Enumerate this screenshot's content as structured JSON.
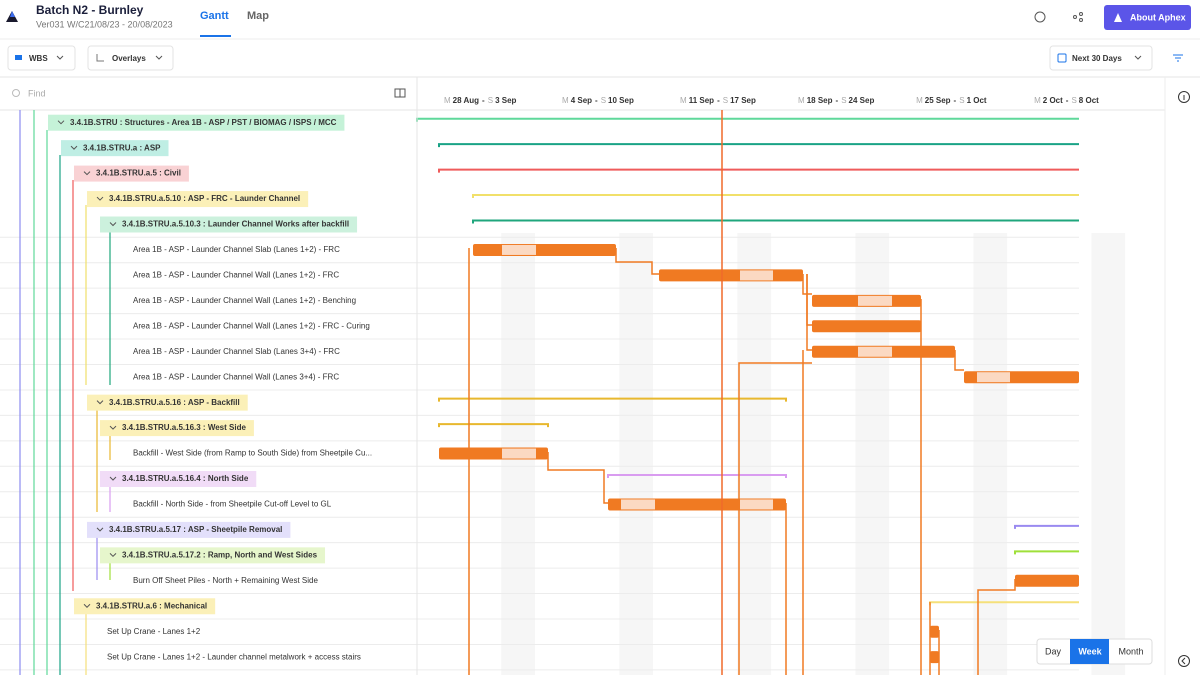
{
  "header": {
    "title": "Batch N2 - Burnley",
    "subtitle": "Ver031 W/C21/08/23 - 20/08/2023",
    "tabs": [
      "Gantt",
      "Map"
    ],
    "about": "About Aphex"
  },
  "toolbar": {
    "wbs": "WBS",
    "overlays": "Overlays",
    "range": "Next 30 Days"
  },
  "tree": {
    "search": "Find",
    "rows": [
      "3.4.1B.STRU : Structures - Area 1B - ASP / PST / BIOMAG / ISPS / MCC",
      "3.4.1B.STRU.a : ASP",
      "3.4.1B.STRU.a.5 : Civil",
      "3.4.1B.STRU.a.5.10 : ASP - FRC - Launder Channel",
      "3.4.1B.STRU.a.5.10.3 : Launder Channel Works after backfill",
      "Area 1B - ASP - Launder Channel Slab (Lanes 1+2) - FRC",
      "Area 1B - ASP - Launder Channel Wall (Lanes 1+2) - FRC",
      "Area 1B - ASP - Launder Channel Wall (Lanes 1+2) - Benching",
      "Area 1B - ASP - Launder Channel Wall (Lanes 1+2) - FRC - Curing",
      "Area 1B - ASP - Launder Channel Slab (Lanes 3+4) - FRC",
      "Area 1B - ASP - Launder Channel Wall (Lanes 3+4) - FRC",
      "3.4.1B.STRU.a.5.16 : ASP - Backfill",
      "3.4.1B.STRU.a.5.16.3 : West Side",
      "Backfill - West Side (from Ramp to South Side) from Sheetpile Cu...",
      "3.4.1B.STRU.a.5.16.4 : North Side",
      "Backfill - North Side - from Sheetpile Cut-off Level to GL",
      "3.4.1B.STRU.a.5.17 : ASP - Sheetpile Removal",
      "3.4.1B.STRU.a.5.17.2 : Ramp, North and West Sides",
      "Burn Off Sheet Piles - North + Remaining West Side",
      "3.4.1B.STRU.a.6 : Mechanical",
      "Set Up Crane - Lanes 1+2",
      "Set Up Crane - Lanes 1+2 - Launder channel metalwork + access stairs"
    ]
  },
  "timeline": {
    "weeks": [
      {
        "mon": "M",
        "from": "28 Aug",
        "dash": "-",
        "sun": "S",
        "to": "3 Sep"
      },
      {
        "mon": "M",
        "from": "4 Sep",
        "dash": "-",
        "sun": "S",
        "to": "10 Sep"
      },
      {
        "mon": "M",
        "from": "11 Sep",
        "dash": "-",
        "sun": "S",
        "to": "17 Sep"
      },
      {
        "mon": "M",
        "from": "18 Sep",
        "dash": "-",
        "sun": "S",
        "to": "24 Sep"
      },
      {
        "mon": "M",
        "from": "25 Sep",
        "dash": "-",
        "sun": "S",
        "to": "1 Oct"
      },
      {
        "mon": "M",
        "from": "2 Oct",
        "dash": "-",
        "sun": "S",
        "to": "8 Oct"
      }
    ]
  },
  "zoom": [
    "Day",
    "Week",
    "Month"
  ]
}
